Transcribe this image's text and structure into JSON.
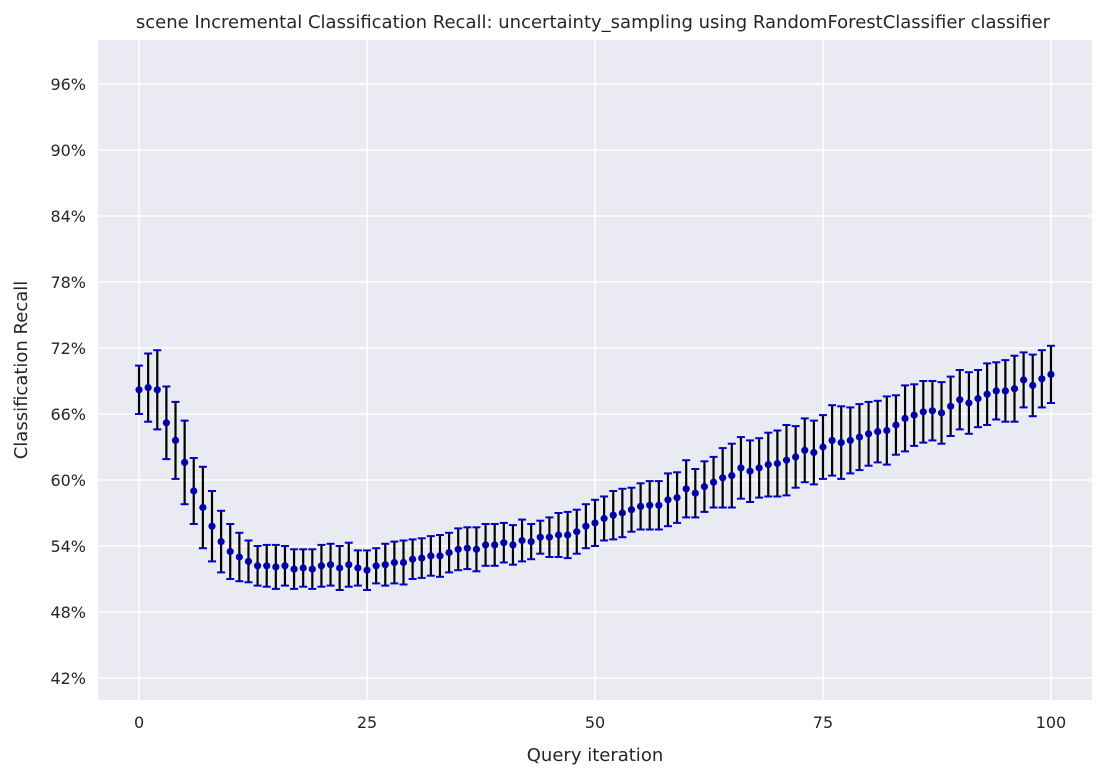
{
  "chart_data": {
    "type": "scatter",
    "title": "scene Incremental Classification Recall: uncertainty_sampling using RandomForestClassifier classifier",
    "xlabel": "Query iteration",
    "ylabel": "Classification Recall",
    "xlim": [
      -4.5,
      104.5
    ],
    "ylim": [
      40,
      100
    ],
    "xticks": [
      0,
      25,
      50,
      75,
      100
    ],
    "yticks": [
      42,
      48,
      54,
      60,
      66,
      72,
      78,
      84,
      90,
      96
    ],
    "ytick_format": "percent",
    "grid": true,
    "background": "#eaeaf2",
    "grid_color": "#ffffff",
    "point_color": "#0000aa",
    "errorbar_color": "#000000",
    "cap_color": "#0000cc",
    "x": [
      0,
      1,
      2,
      3,
      4,
      5,
      6,
      7,
      8,
      9,
      10,
      11,
      12,
      13,
      14,
      15,
      16,
      17,
      18,
      19,
      20,
      21,
      22,
      23,
      24,
      25,
      26,
      27,
      28,
      29,
      30,
      31,
      32,
      33,
      34,
      35,
      36,
      37,
      38,
      39,
      40,
      41,
      42,
      43,
      44,
      45,
      46,
      47,
      48,
      49,
      50,
      51,
      52,
      53,
      54,
      55,
      56,
      57,
      58,
      59,
      60,
      61,
      62,
      63,
      64,
      65,
      66,
      67,
      68,
      69,
      70,
      71,
      72,
      73,
      74,
      75,
      76,
      77,
      78,
      79,
      80,
      81,
      82,
      83,
      84,
      85,
      86,
      87,
      88,
      89,
      90,
      91,
      92,
      93,
      94,
      95,
      96,
      97,
      98,
      99,
      100
    ],
    "y": [
      68.2,
      68.4,
      68.2,
      65.2,
      63.6,
      61.6,
      59.0,
      57.5,
      55.8,
      54.4,
      53.5,
      53.0,
      52.6,
      52.2,
      52.2,
      52.1,
      52.2,
      51.9,
      52.0,
      51.9,
      52.2,
      52.3,
      52.0,
      52.3,
      52.0,
      51.8,
      52.2,
      52.3,
      52.5,
      52.5,
      52.8,
      52.9,
      53.1,
      53.1,
      53.4,
      53.7,
      53.8,
      53.7,
      54.1,
      54.1,
      54.3,
      54.1,
      54.5,
      54.4,
      54.8,
      54.8,
      55.0,
      55.0,
      55.3,
      55.8,
      56.1,
      56.5,
      56.8,
      57.0,
      57.3,
      57.6,
      57.7,
      57.7,
      58.2,
      58.4,
      59.2,
      58.8,
      59.4,
      59.8,
      60.2,
      60.4,
      61.1,
      60.8,
      61.1,
      61.4,
      61.5,
      61.8,
      62.1,
      62.7,
      62.5,
      63.0,
      63.6,
      63.4,
      63.6,
      63.9,
      64.2,
      64.4,
      64.5,
      65.0,
      65.6,
      65.9,
      66.2,
      66.3,
      66.1,
      66.7,
      67.3,
      67.0,
      67.4,
      67.8,
      68.1,
      68.1,
      68.3,
      69.1,
      68.6,
      69.2,
      69.6
    ],
    "yerr": [
      2.2,
      3.1,
      3.6,
      3.3,
      3.5,
      3.8,
      3.0,
      3.7,
      3.2,
      2.8,
      2.5,
      2.2,
      1.9,
      1.8,
      1.9,
      2.0,
      1.8,
      1.8,
      1.7,
      1.8,
      1.9,
      1.9,
      2.0,
      2.0,
      1.6,
      1.8,
      1.6,
      1.9,
      1.9,
      2.0,
      1.8,
      1.8,
      1.8,
      1.9,
      1.8,
      1.9,
      1.9,
      2.0,
      1.9,
      1.9,
      1.8,
      1.8,
      1.9,
      1.6,
      1.5,
      1.8,
      2.0,
      2.1,
      2.0,
      2.0,
      2.1,
      2.0,
      2.2,
      2.2,
      2.0,
      2.1,
      2.2,
      2.2,
      2.4,
      2.3,
      2.6,
      2.2,
      2.3,
      2.3,
      2.7,
      2.9,
      2.8,
      2.8,
      2.7,
      2.9,
      3.0,
      3.2,
      2.8,
      2.9,
      2.9,
      2.9,
      3.2,
      3.3,
      3.0,
      3.0,
      2.9,
      2.8,
      3.1,
      2.7,
      3.0,
      2.8,
      2.8,
      2.7,
      2.8,
      2.7,
      2.7,
      2.8,
      2.6,
      2.8,
      2.6,
      2.8,
      3.0,
      2.5,
      2.8,
      2.6,
      2.6
    ]
  }
}
